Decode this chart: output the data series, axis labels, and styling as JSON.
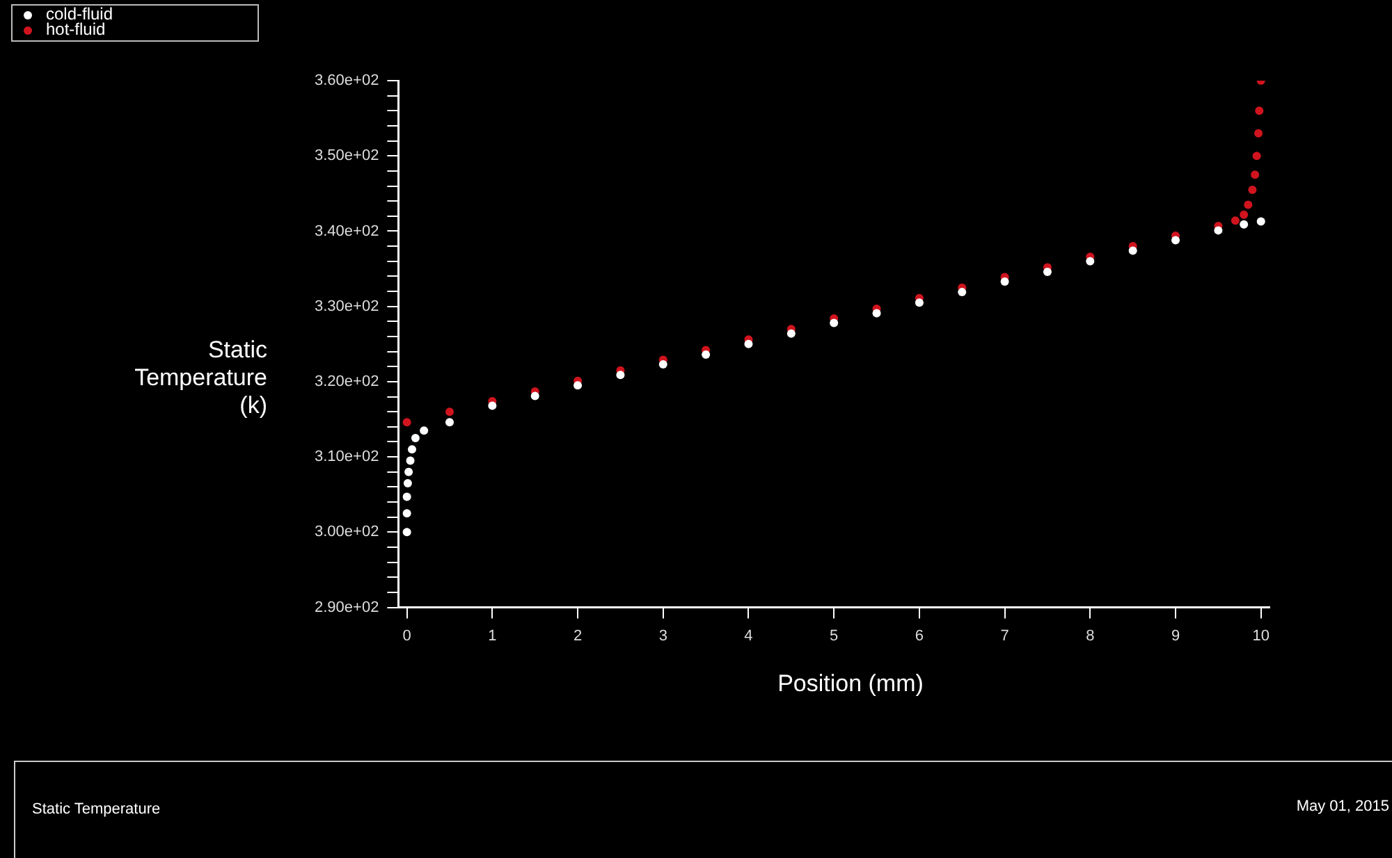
{
  "chart_data": {
    "type": "scatter",
    "ylabel": "Static\nTemperature\n(k)",
    "xlabel": "Position (mm)",
    "annotations": [
      "Static Temperature",
      "May 01, 2015"
    ],
    "xlim": [
      -0.1,
      10.1
    ],
    "xticks": [
      0,
      1,
      2,
      3,
      4,
      5,
      6,
      7,
      8,
      9,
      10
    ],
    "ylim": [
      290,
      360
    ],
    "yticks": [
      {
        "value": 290,
        "label": "2.90e+02"
      },
      {
        "value": 292,
        "label": null
      },
      {
        "value": 294,
        "label": null
      },
      {
        "value": 296,
        "label": null
      },
      {
        "value": 298,
        "label": null
      },
      {
        "value": 300,
        "label": "3.00e+02"
      },
      {
        "value": 302,
        "label": null
      },
      {
        "value": 304,
        "label": null
      },
      {
        "value": 306,
        "label": null
      },
      {
        "value": 308,
        "label": null
      },
      {
        "value": 310,
        "label": "3.10e+02"
      },
      {
        "value": 312,
        "label": null
      },
      {
        "value": 314,
        "label": null
      },
      {
        "value": 316,
        "label": null
      },
      {
        "value": 318,
        "label": null
      },
      {
        "value": 320,
        "label": "3.20e+02"
      },
      {
        "value": 322,
        "label": null
      },
      {
        "value": 324,
        "label": null
      },
      {
        "value": 326,
        "label": null
      },
      {
        "value": 328,
        "label": null
      },
      {
        "value": 330,
        "label": "3.30e+02"
      },
      {
        "value": 332,
        "label": null
      },
      {
        "value": 334,
        "label": null
      },
      {
        "value": 336,
        "label": null
      },
      {
        "value": 338,
        "label": null
      },
      {
        "value": 340,
        "label": "3.40e+02"
      },
      {
        "value": 342,
        "label": null
      },
      {
        "value": 344,
        "label": null
      },
      {
        "value": 346,
        "label": null
      },
      {
        "value": 348,
        "label": null
      },
      {
        "value": 350,
        "label": "3.50e+02"
      },
      {
        "value": 352,
        "label": null
      },
      {
        "value": 354,
        "label": null
      },
      {
        "value": 356,
        "label": null
      },
      {
        "value": 358,
        "label": null
      },
      {
        "value": 360,
        "label": "3.60e+02"
      }
    ],
    "grid": false,
    "legend": "top left",
    "marker": "circle",
    "series": [
      {
        "name": "cold-fluid",
        "color": "#ffffff",
        "x": [
          0,
          0,
          0,
          0.01,
          0.02,
          0.04,
          0.06,
          0.1,
          0.2,
          0.5,
          1,
          1.5,
          2,
          2.5,
          3,
          3.5,
          4,
          4.5,
          5,
          5.5,
          6,
          6.5,
          7,
          7.5,
          8,
          8.5,
          9,
          9.5,
          9.8,
          10
        ],
        "values": [
          300,
          302.5,
          304.7,
          306.5,
          308,
          309.5,
          311,
          312.5,
          313.5,
          314.6,
          316.8,
          318.1,
          319.5,
          320.9,
          322.3,
          323.6,
          325,
          326.4,
          327.8,
          329.1,
          330.5,
          331.9,
          333.3,
          334.6,
          336,
          337.4,
          338.8,
          340.1,
          340.9,
          341.3
        ]
      },
      {
        "name": "hot-fluid",
        "color": "#d0141e",
        "x": [
          0,
          0.5,
          1,
          1.5,
          2,
          2.5,
          3,
          3.5,
          4,
          4.5,
          5,
          5.5,
          6,
          6.5,
          7,
          7.5,
          8,
          8.5,
          9,
          9.5,
          9.7,
          9.8,
          9.85,
          9.9,
          9.93,
          9.95,
          9.97,
          9.98,
          10
        ],
        "values": [
          314.6,
          316,
          317.4,
          318.7,
          320.1,
          321.5,
          322.9,
          324.2,
          325.6,
          327,
          328.4,
          329.7,
          331.1,
          332.5,
          333.9,
          335.2,
          336.6,
          338,
          339.4,
          340.7,
          341.4,
          342.2,
          343.5,
          345.5,
          347.5,
          350,
          353,
          356,
          360
        ]
      }
    ]
  }
}
